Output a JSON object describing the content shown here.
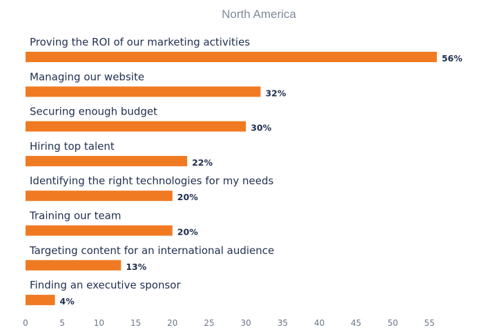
{
  "chart_data": {
    "type": "bar",
    "orientation": "horizontal",
    "title": "North America",
    "categories": [
      "Proving the ROI of our marketing activities",
      "Managing our website",
      "Securing enough budget",
      "Hiring top talent",
      "Identifying the right technologies for my needs",
      "Training our team",
      "Targeting content for an international audience",
      "Finding an executive sponsor"
    ],
    "values": [
      56,
      32,
      30,
      22,
      20,
      20,
      13,
      4
    ],
    "value_labels": [
      "56%",
      "32%",
      "30%",
      "22%",
      "20%",
      "20%",
      "13%",
      "4%"
    ],
    "xlim": [
      0,
      55
    ],
    "xticks": [
      0,
      5,
      10,
      15,
      20,
      25,
      30,
      35,
      40,
      45,
      50,
      55
    ],
    "grid": false,
    "bar_color": "#f07a22",
    "text_color": "#1f2f4d",
    "title_color": "#7f8a99"
  }
}
